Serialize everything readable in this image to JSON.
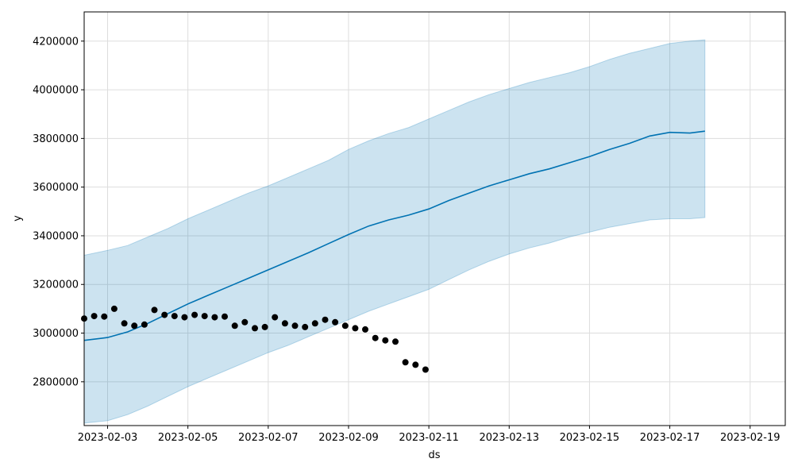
{
  "chart_data": {
    "type": "line",
    "title": "",
    "xlabel": "ds",
    "ylabel": "y",
    "x_axis_type": "date",
    "xlim": [
      "2023-02-02T10:00:00",
      "2023-02-19T21:00:00"
    ],
    "ylim": [
      2620000,
      4320000
    ],
    "x_ticks": [
      "2023-02-03",
      "2023-02-05",
      "2023-02-07",
      "2023-02-09",
      "2023-02-11",
      "2023-02-13",
      "2023-02-15",
      "2023-02-17",
      "2023-02-19"
    ],
    "y_ticks": [
      2800000,
      3000000,
      3200000,
      3400000,
      3600000,
      3800000,
      4000000,
      4200000
    ],
    "grid": true,
    "legend": false,
    "colors": {
      "forecast": "#0072B2",
      "interval_fill": "#0072B2",
      "interval_opacity": 0.2,
      "observed": "#000000",
      "grid": "#dddddd"
    },
    "series": [
      {
        "role": "forecast",
        "x": [
          "2023-02-02T10:00:00",
          "2023-02-03T00:00:00",
          "2023-02-03T12:00:00",
          "2023-02-04T00:00:00",
          "2023-02-04T12:00:00",
          "2023-02-05T00:00:00",
          "2023-02-05T12:00:00",
          "2023-02-06T00:00:00",
          "2023-02-06T12:00:00",
          "2023-02-07T00:00:00",
          "2023-02-07T12:00:00",
          "2023-02-08T00:00:00",
          "2023-02-08T12:00:00",
          "2023-02-09T00:00:00",
          "2023-02-09T12:00:00",
          "2023-02-10T00:00:00",
          "2023-02-10T12:00:00",
          "2023-02-11T00:00:00",
          "2023-02-11T12:00:00",
          "2023-02-12T00:00:00",
          "2023-02-12T12:00:00",
          "2023-02-13T00:00:00",
          "2023-02-13T12:00:00",
          "2023-02-14T00:00:00",
          "2023-02-14T12:00:00",
          "2023-02-15T00:00:00",
          "2023-02-15T12:00:00",
          "2023-02-16T00:00:00",
          "2023-02-16T12:00:00",
          "2023-02-17T00:00:00",
          "2023-02-17T12:00:00",
          "2023-02-17T21:00:00"
        ],
        "y": [
          2970000,
          2982000,
          3005000,
          3040000,
          3080000,
          3120000,
          3155000,
          3190000,
          3225000,
          3260000,
          3295000,
          3330000,
          3368000,
          3405000,
          3440000,
          3465000,
          3485000,
          3510000,
          3545000,
          3575000,
          3605000,
          3630000,
          3655000,
          3675000,
          3700000,
          3725000,
          3755000,
          3780000,
          3810000,
          3825000,
          3822000,
          3830000
        ]
      },
      {
        "role": "interval_upper",
        "x": [
          "2023-02-02T10:00:00",
          "2023-02-03T00:00:00",
          "2023-02-03T12:00:00",
          "2023-02-04T00:00:00",
          "2023-02-04T12:00:00",
          "2023-02-05T00:00:00",
          "2023-02-05T12:00:00",
          "2023-02-06T00:00:00",
          "2023-02-06T12:00:00",
          "2023-02-07T00:00:00",
          "2023-02-07T12:00:00",
          "2023-02-08T00:00:00",
          "2023-02-08T12:00:00",
          "2023-02-09T00:00:00",
          "2023-02-09T12:00:00",
          "2023-02-10T00:00:00",
          "2023-02-10T12:00:00",
          "2023-02-11T00:00:00",
          "2023-02-11T12:00:00",
          "2023-02-12T00:00:00",
          "2023-02-12T12:00:00",
          "2023-02-13T00:00:00",
          "2023-02-13T12:00:00",
          "2023-02-14T00:00:00",
          "2023-02-14T12:00:00",
          "2023-02-15T00:00:00",
          "2023-02-15T12:00:00",
          "2023-02-16T00:00:00",
          "2023-02-16T12:00:00",
          "2023-02-17T00:00:00",
          "2023-02-17T12:00:00",
          "2023-02-17T21:00:00"
        ],
        "y": [
          3320000,
          3340000,
          3360000,
          3395000,
          3430000,
          3470000,
          3505000,
          3540000,
          3575000,
          3605000,
          3640000,
          3675000,
          3710000,
          3755000,
          3790000,
          3820000,
          3845000,
          3880000,
          3915000,
          3950000,
          3980000,
          4005000,
          4030000,
          4050000,
          4070000,
          4095000,
          4125000,
          4150000,
          4170000,
          4190000,
          4200000,
          4205000
        ]
      },
      {
        "role": "interval_lower",
        "x": [
          "2023-02-02T10:00:00",
          "2023-02-03T00:00:00",
          "2023-02-03T12:00:00",
          "2023-02-04T00:00:00",
          "2023-02-04T12:00:00",
          "2023-02-05T00:00:00",
          "2023-02-05T12:00:00",
          "2023-02-06T00:00:00",
          "2023-02-06T12:00:00",
          "2023-02-07T00:00:00",
          "2023-02-07T12:00:00",
          "2023-02-08T00:00:00",
          "2023-02-08T12:00:00",
          "2023-02-09T00:00:00",
          "2023-02-09T12:00:00",
          "2023-02-10T00:00:00",
          "2023-02-10T12:00:00",
          "2023-02-11T00:00:00",
          "2023-02-11T12:00:00",
          "2023-02-12T00:00:00",
          "2023-02-12T12:00:00",
          "2023-02-13T00:00:00",
          "2023-02-13T12:00:00",
          "2023-02-14T00:00:00",
          "2023-02-14T12:00:00",
          "2023-02-15T00:00:00",
          "2023-02-15T12:00:00",
          "2023-02-16T00:00:00",
          "2023-02-16T12:00:00",
          "2023-02-17T00:00:00",
          "2023-02-17T12:00:00",
          "2023-02-17T21:00:00"
        ],
        "y": [
          2630000,
          2640000,
          2665000,
          2700000,
          2740000,
          2780000,
          2815000,
          2850000,
          2885000,
          2920000,
          2950000,
          2985000,
          3020000,
          3055000,
          3090000,
          3120000,
          3150000,
          3180000,
          3220000,
          3260000,
          3295000,
          3325000,
          3350000,
          3370000,
          3395000,
          3415000,
          3435000,
          3450000,
          3465000,
          3470000,
          3470000,
          3475000
        ]
      },
      {
        "role": "observed",
        "x": [
          "2023-02-02T10:00:00",
          "2023-02-02T16:00:00",
          "2023-02-02T22:00:00",
          "2023-02-03T04:00:00",
          "2023-02-03T10:00:00",
          "2023-02-03T16:00:00",
          "2023-02-03T22:00:00",
          "2023-02-04T04:00:00",
          "2023-02-04T10:00:00",
          "2023-02-04T16:00:00",
          "2023-02-04T22:00:00",
          "2023-02-05T04:00:00",
          "2023-02-05T10:00:00",
          "2023-02-05T16:00:00",
          "2023-02-05T22:00:00",
          "2023-02-06T04:00:00",
          "2023-02-06T10:00:00",
          "2023-02-06T16:00:00",
          "2023-02-06T22:00:00",
          "2023-02-07T04:00:00",
          "2023-02-07T10:00:00",
          "2023-02-07T16:00:00",
          "2023-02-07T22:00:00",
          "2023-02-08T04:00:00",
          "2023-02-08T10:00:00",
          "2023-02-08T16:00:00",
          "2023-02-08T22:00:00",
          "2023-02-09T04:00:00",
          "2023-02-09T10:00:00",
          "2023-02-09T16:00:00",
          "2023-02-09T22:00:00",
          "2023-02-10T04:00:00",
          "2023-02-10T10:00:00",
          "2023-02-10T16:00:00",
          "2023-02-10T22:00:00"
        ],
        "y": [
          3060000,
          3070000,
          3068000,
          3100000,
          3040000,
          3030000,
          3035000,
          3095000,
          3075000,
          3070000,
          3065000,
          3075000,
          3070000,
          3065000,
          3068000,
          3030000,
          3045000,
          3020000,
          3025000,
          3065000,
          3040000,
          3030000,
          3025000,
          3040000,
          3055000,
          3045000,
          3030000,
          3020000,
          3015000,
          2980000,
          2970000,
          2965000,
          2880000,
          2870000,
          2850000
        ]
      }
    ]
  }
}
